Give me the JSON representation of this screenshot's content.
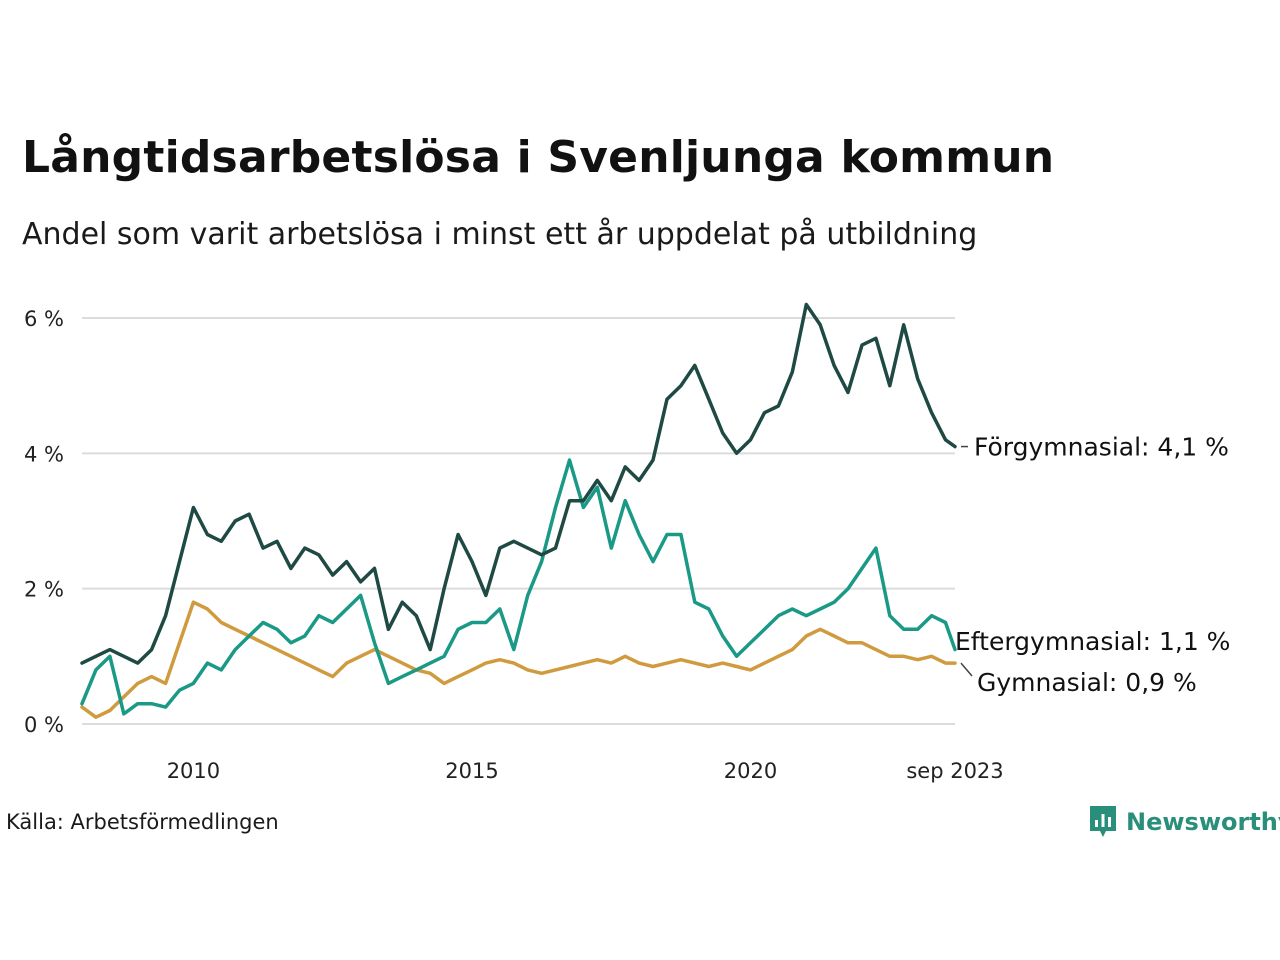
{
  "title": "Långtidsarbetslösa i Svenljunga kommun",
  "subtitle": "Andel som varit arbetslösa i minst ett år uppdelat på utbildning",
  "source": "Källa: Arbetsförmedlingen",
  "brand": {
    "name": "Newsworthy",
    "icon": "newsworthy-logo-icon",
    "color": "#2a8f7a"
  },
  "chart_data": {
    "type": "line",
    "title": "Långtidsarbetslösa i Svenljunga kommun",
    "xlabel": "",
    "ylabel": "",
    "x_range": [
      2008.0,
      2023.67
    ],
    "ylim": [
      0,
      6.2
    ],
    "y_ticks": [
      {
        "value": 0,
        "label": "0 %"
      },
      {
        "value": 2,
        "label": "2 %"
      },
      {
        "value": 4,
        "label": "4 %"
      },
      {
        "value": 6,
        "label": "6 %"
      }
    ],
    "x_ticks": [
      {
        "value": 2010,
        "label": "2010"
      },
      {
        "value": 2015,
        "label": "2015"
      },
      {
        "value": 2020,
        "label": "2020"
      },
      {
        "value": 2023.67,
        "label": "sep 2023"
      }
    ],
    "grid": "horizontal",
    "series": [
      {
        "name": "Förgymnasial",
        "end_label": "Förgymnasial: 4,1 %",
        "color": "#1f4a44",
        "x": [
          2008.0,
          2008.25,
          2008.5,
          2008.75,
          2009.0,
          2009.25,
          2009.5,
          2009.75,
          2010.0,
          2010.25,
          2010.5,
          2010.75,
          2011.0,
          2011.25,
          2011.5,
          2011.75,
          2012.0,
          2012.25,
          2012.5,
          2012.75,
          2013.0,
          2013.25,
          2013.5,
          2013.75,
          2014.0,
          2014.25,
          2014.5,
          2014.75,
          2015.0,
          2015.25,
          2015.5,
          2015.75,
          2016.0,
          2016.25,
          2016.5,
          2016.75,
          2017.0,
          2017.25,
          2017.5,
          2017.75,
          2018.0,
          2018.25,
          2018.5,
          2018.75,
          2019.0,
          2019.25,
          2019.5,
          2019.75,
          2020.0,
          2020.25,
          2020.5,
          2020.75,
          2021.0,
          2021.25,
          2021.5,
          2021.75,
          2022.0,
          2022.25,
          2022.5,
          2022.75,
          2023.0,
          2023.25,
          2023.5,
          2023.67
        ],
        "values": [
          0.9,
          1.0,
          1.1,
          1.0,
          0.9,
          1.1,
          1.6,
          2.4,
          3.2,
          2.8,
          2.7,
          3.0,
          3.1,
          2.6,
          2.7,
          2.3,
          2.6,
          2.5,
          2.2,
          2.4,
          2.1,
          2.3,
          1.4,
          1.8,
          1.6,
          1.1,
          2.0,
          2.8,
          2.4,
          1.9,
          2.6,
          2.7,
          2.6,
          2.5,
          2.6,
          3.3,
          3.3,
          3.6,
          3.3,
          3.8,
          3.6,
          3.9,
          4.8,
          5.0,
          5.3,
          4.8,
          4.3,
          4.0,
          4.2,
          4.6,
          4.7,
          5.2,
          6.2,
          5.9,
          5.3,
          4.9,
          5.6,
          5.7,
          5.0,
          5.9,
          5.1,
          4.6,
          4.2,
          4.1
        ]
      },
      {
        "name": "Eftergymnasial",
        "end_label": "Eftergymnasial: 1,1 %",
        "color": "#1a9986",
        "x": [
          2008.0,
          2008.25,
          2008.5,
          2008.75,
          2009.0,
          2009.25,
          2009.5,
          2009.75,
          2010.0,
          2010.25,
          2010.5,
          2010.75,
          2011.0,
          2011.25,
          2011.5,
          2011.75,
          2012.0,
          2012.25,
          2012.5,
          2012.75,
          2013.0,
          2013.25,
          2013.5,
          2013.75,
          2014.0,
          2014.25,
          2014.5,
          2014.75,
          2015.0,
          2015.25,
          2015.5,
          2015.75,
          2016.0,
          2016.25,
          2016.5,
          2016.75,
          2017.0,
          2017.25,
          2017.5,
          2017.75,
          2018.0,
          2018.25,
          2018.5,
          2018.75,
          2019.0,
          2019.25,
          2019.5,
          2019.75,
          2020.0,
          2020.25,
          2020.5,
          2020.75,
          2021.0,
          2021.25,
          2021.5,
          2021.75,
          2022.0,
          2022.25,
          2022.5,
          2022.75,
          2023.0,
          2023.25,
          2023.5,
          2023.67
        ],
        "values": [
          0.3,
          0.8,
          1.0,
          0.15,
          0.3,
          0.3,
          0.25,
          0.5,
          0.6,
          0.9,
          0.8,
          1.1,
          1.3,
          1.5,
          1.4,
          1.2,
          1.3,
          1.6,
          1.5,
          1.7,
          1.9,
          1.2,
          0.6,
          0.7,
          0.8,
          0.9,
          1.0,
          1.4,
          1.5,
          1.5,
          1.7,
          1.1,
          1.9,
          2.4,
          3.2,
          3.9,
          3.2,
          3.5,
          2.6,
          3.3,
          2.8,
          2.4,
          2.8,
          2.8,
          1.8,
          1.7,
          1.3,
          1.0,
          1.2,
          1.4,
          1.6,
          1.7,
          1.6,
          1.7,
          1.8,
          2.0,
          2.3,
          2.6,
          1.6,
          1.4,
          1.4,
          1.6,
          1.5,
          1.1
        ]
      },
      {
        "name": "Gymnasial",
        "end_label": "Gymnasial: 0,9 %",
        "color": "#d09b3f",
        "x": [
          2008.0,
          2008.25,
          2008.5,
          2008.75,
          2009.0,
          2009.25,
          2009.5,
          2009.75,
          2010.0,
          2010.25,
          2010.5,
          2010.75,
          2011.0,
          2011.25,
          2011.5,
          2011.75,
          2012.0,
          2012.25,
          2012.5,
          2012.75,
          2013.0,
          2013.25,
          2013.5,
          2013.75,
          2014.0,
          2014.25,
          2014.5,
          2014.75,
          2015.0,
          2015.25,
          2015.5,
          2015.75,
          2016.0,
          2016.25,
          2016.5,
          2016.75,
          2017.0,
          2017.25,
          2017.5,
          2017.75,
          2018.0,
          2018.25,
          2018.5,
          2018.75,
          2019.0,
          2019.25,
          2019.5,
          2019.75,
          2020.0,
          2020.25,
          2020.5,
          2020.75,
          2021.0,
          2021.25,
          2021.5,
          2021.75,
          2022.0,
          2022.25,
          2022.5,
          2022.75,
          2023.0,
          2023.25,
          2023.5,
          2023.67
        ],
        "values": [
          0.25,
          0.1,
          0.2,
          0.4,
          0.6,
          0.7,
          0.6,
          1.2,
          1.8,
          1.7,
          1.5,
          1.4,
          1.3,
          1.2,
          1.1,
          1.0,
          0.9,
          0.8,
          0.7,
          0.9,
          1.0,
          1.1,
          1.0,
          0.9,
          0.8,
          0.75,
          0.6,
          0.7,
          0.8,
          0.9,
          0.95,
          0.9,
          0.8,
          0.75,
          0.8,
          0.85,
          0.9,
          0.95,
          0.9,
          1.0,
          0.9,
          0.85,
          0.9,
          0.95,
          0.9,
          0.85,
          0.9,
          0.85,
          0.8,
          0.9,
          1.0,
          1.1,
          1.3,
          1.4,
          1.3,
          1.2,
          1.2,
          1.1,
          1.0,
          1.0,
          0.95,
          1.0,
          0.9,
          0.9
        ]
      }
    ]
  }
}
